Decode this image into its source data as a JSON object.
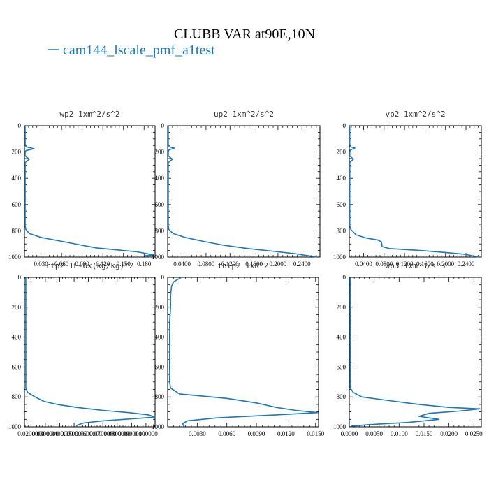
{
  "figure": {
    "title": "CLUBB VAR at90E,10N",
    "legend_label": "cam144_lscale_pmf_a1test",
    "line_color": "#1f77b4"
  },
  "chart_data": [
    {
      "type": "line",
      "title": "wp2  1xm^2/s^2",
      "ylim": [
        1000,
        0
      ],
      "xlim": [
        0.006,
        0.196
      ],
      "yticks": [
        0,
        200,
        400,
        600,
        800,
        1000
      ],
      "xtick_labels": [
        "0.030",
        "0.060",
        "0.090",
        "0.120",
        "0.150",
        "0.180"
      ],
      "xticks": [
        0.03,
        0.06,
        0.09,
        0.12,
        0.15,
        0.18
      ],
      "series": [
        {
          "points": [
            [
              0.007,
              0
            ],
            [
              0.007,
              140
            ],
            [
              0.008,
              160
            ],
            [
              0.02,
              175
            ],
            [
              0.008,
              190
            ],
            [
              0.007,
              200
            ],
            [
              0.007,
              230
            ],
            [
              0.013,
              255
            ],
            [
              0.007,
              280
            ],
            [
              0.007,
              760
            ],
            [
              0.008,
              790
            ],
            [
              0.013,
              820
            ],
            [
              0.03,
              850
            ],
            [
              0.06,
              880
            ],
            [
              0.09,
              910
            ],
            [
              0.11,
              930
            ],
            [
              0.14,
              945
            ],
            [
              0.17,
              960
            ],
            [
              0.185,
              975
            ],
            [
              0.194,
              985
            ],
            [
              0.182,
              990
            ],
            [
              0.19,
              1000
            ]
          ]
        }
      ]
    },
    {
      "type": "line",
      "title": "up2  1xm^2/s^2",
      "ylim": [
        1000,
        0
      ],
      "xlim": [
        0.016,
        0.27
      ],
      "yticks": [
        0,
        200,
        400,
        600,
        800,
        1000
      ],
      "xtick_labels": [
        "0.0400",
        "0.0800",
        "0.1200",
        "0.1600",
        "0.2000",
        "0.2400"
      ],
      "xticks": [
        0.04,
        0.08,
        0.12,
        0.16,
        0.2,
        0.24
      ],
      "series": [
        {
          "points": [
            [
              0.017,
              0
            ],
            [
              0.017,
              140
            ],
            [
              0.018,
              160
            ],
            [
              0.027,
              170
            ],
            [
              0.018,
              185
            ],
            [
              0.017,
              200
            ],
            [
              0.017,
              230
            ],
            [
              0.024,
              255
            ],
            [
              0.017,
              280
            ],
            [
              0.017,
              760
            ],
            [
              0.018,
              790
            ],
            [
              0.025,
              820
            ],
            [
              0.045,
              850
            ],
            [
              0.075,
              880
            ],
            [
              0.11,
              910
            ],
            [
              0.15,
              935
            ],
            [
              0.19,
              955
            ],
            [
              0.23,
              975
            ],
            [
              0.265,
              1000
            ]
          ]
        }
      ]
    },
    {
      "type": "line",
      "title": "vp2  1xm^2/s^2",
      "ylim": [
        1000,
        0
      ],
      "xlim": [
        0.012,
        0.27
      ],
      "yticks": [
        0,
        200,
        400,
        600,
        800,
        1000
      ],
      "xtick_labels": [
        "0.0400",
        "0.0800",
        "0.1200",
        "0.1600",
        "0.2000",
        "0.2400"
      ],
      "xticks": [
        0.04,
        0.08,
        0.12,
        0.16,
        0.2,
        0.24
      ],
      "series": [
        {
          "points": [
            [
              0.013,
              0
            ],
            [
              0.013,
              140
            ],
            [
              0.014,
              160
            ],
            [
              0.023,
              170
            ],
            [
              0.014,
              185
            ],
            [
              0.013,
              200
            ],
            [
              0.013,
              230
            ],
            [
              0.02,
              255
            ],
            [
              0.013,
              280
            ],
            [
              0.013,
              760
            ],
            [
              0.015,
              790
            ],
            [
              0.025,
              830
            ],
            [
              0.045,
              855
            ],
            [
              0.068,
              870
            ],
            [
              0.075,
              885
            ],
            [
              0.076,
              920
            ],
            [
              0.09,
              935
            ],
            [
              0.15,
              950
            ],
            [
              0.2,
              965
            ],
            [
              0.24,
              980
            ],
            [
              0.265,
              1000
            ]
          ]
        }
      ]
    },
    {
      "type": "line",
      "title": "rtp2  1E-6x(kg/kg)^2",
      "ylim": [
        1000,
        0
      ],
      "xlim": [
        0,
        0.0001
      ],
      "yticks": [
        0,
        200,
        400,
        600,
        800,
        1000
      ],
      "xtick_labels": [
        "0.0200000",
        "0.0300000",
        "0.0400000",
        "0.0500000",
        "0.0600000",
        "0.0700000",
        "0.0800000",
        "0.0900000",
        "0.100000"
      ],
      "xtick_fracs": [
        0.05,
        0.16,
        0.27,
        0.38,
        0.49,
        0.6,
        0.71,
        0.82,
        0.93
      ],
      "series": [
        {
          "points": [
            [
              1e-06,
              0
            ],
            [
              1e-06,
              740
            ],
            [
              2.5e-06,
              770
            ],
            [
              8e-06,
              800
            ],
            [
              1.5e-05,
              830
            ],
            [
              2.5e-05,
              850
            ],
            [
              4e-05,
              870
            ],
            [
              6e-05,
              890
            ],
            [
              8e-05,
              905
            ],
            [
              9.5e-05,
              920
            ],
            [
              0.0001,
              935
            ],
            [
              8.5e-05,
              945
            ],
            [
              6e-05,
              960
            ],
            [
              4.5e-05,
              975
            ],
            [
              4e-05,
              990
            ],
            [
              4e-05,
              1000
            ]
          ]
        }
      ]
    },
    {
      "type": "line",
      "title": "thlp2  1xK^2",
      "ylim": [
        1000,
        0
      ],
      "xlim": [
        0,
        0.0153
      ],
      "yticks": [
        0,
        200,
        400,
        600,
        800,
        1000
      ],
      "xtick_labels": [
        "0.0030",
        "0.0060",
        "0.0090",
        "0.0120",
        "0.0150"
      ],
      "xticks": [
        0.003,
        0.006,
        0.009,
        0.012,
        0.015
      ],
      "series": [
        {
          "points": [
            [
              0.0014,
              0
            ],
            [
              0.001,
              15
            ],
            [
              0.0006,
              30
            ],
            [
              0.0004,
              60
            ],
            [
              0.0003,
              120
            ],
            [
              0.0003,
              200
            ],
            [
              0.0002,
              300
            ],
            [
              0.0002,
              500
            ],
            [
              0.0002,
              700
            ],
            [
              0.0003,
              740
            ],
            [
              0.0012,
              780
            ],
            [
              0.006,
              810
            ],
            [
              0.009,
              840
            ],
            [
              0.011,
              870
            ],
            [
              0.013,
              890
            ],
            [
              0.0152,
              905
            ],
            [
              0.011,
              920
            ],
            [
              0.005,
              940
            ],
            [
              0.002,
              960
            ],
            [
              0.0015,
              980
            ],
            [
              0.0017,
              1000
            ]
          ]
        }
      ]
    },
    {
      "type": "line",
      "title": "wp3  1xm^3/s^3",
      "ylim": [
        1000,
        0
      ],
      "xlim": [
        0,
        0.0265
      ],
      "yticks": [
        0,
        200,
        400,
        600,
        800,
        1000
      ],
      "xtick_labels": [
        "0.0000",
        "0.0050",
        "0.0100",
        "0.0150",
        "0.0200",
        "0.0250"
      ],
      "xticks": [
        0,
        0.005,
        0.01,
        0.015,
        0.02,
        0.025
      ],
      "series": [
        {
          "points": [
            [
              0.0002,
              0
            ],
            [
              0.0002,
              200
            ],
            [
              0.0002,
              500
            ],
            [
              0.0002,
              740
            ],
            [
              0.0008,
              770
            ],
            [
              0.0025,
              800
            ],
            [
              0.008,
              825
            ],
            [
              0.014,
              850
            ],
            [
              0.02,
              870
            ],
            [
              0.0262,
              880
            ],
            [
              0.022,
              895
            ],
            [
              0.016,
              910
            ],
            [
              0.014,
              930
            ],
            [
              0.018,
              950
            ],
            [
              0.012,
              970
            ],
            [
              0.004,
              985
            ],
            [
              0.0005,
              995
            ],
            [
              0.0002,
              1000
            ]
          ]
        }
      ]
    }
  ]
}
